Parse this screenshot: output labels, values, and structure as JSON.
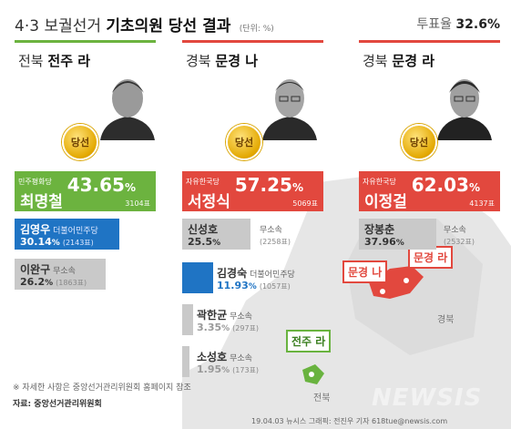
{
  "header": {
    "prefix": "4·3 보궐선거",
    "title": "기초의원 당선 결과",
    "unit": "(단위: %)",
    "turnout_label": "투표율",
    "turnout_value": "32.6%"
  },
  "badge_text": "당선",
  "colors": {
    "democratic_green": "#6cb33f",
    "liberty_red": "#e2483e",
    "democratic_blue": "#1f74c4",
    "gray": "#c9c9c9",
    "map_land": "#e6e6e6",
    "map_region": "#e2483e",
    "map_jeonju": "#69b33f"
  },
  "districts": [
    {
      "region": "전북",
      "district": "전주 라",
      "winner": {
        "party": "민주평화당",
        "name": "최명철",
        "pct": "43.65",
        "votes": "3104표"
      },
      "others": [
        {
          "name": "김영우",
          "party": "더불어민주당",
          "pct": "30.14",
          "votes": "(2143표)"
        },
        {
          "name": "이완구",
          "party": "무소속",
          "pct": "26.2",
          "votes": "(1863표)"
        }
      ]
    },
    {
      "region": "경북",
      "district": "문경 나",
      "winner": {
        "party": "자유한국당",
        "name": "서정식",
        "pct": "57.25",
        "votes": "5069표"
      },
      "others": [
        {
          "name": "신성호",
          "party": "무소속",
          "pct": "25.5",
          "votes": "(2258표)"
        },
        {
          "name": "김경숙",
          "party": "더불어민주당",
          "pct": "11.93",
          "votes": "(1057표)"
        },
        {
          "name": "곽한균",
          "party": "무소속",
          "pct": "3.35",
          "votes": "(297표)"
        },
        {
          "name": "소성호",
          "party": "무소속",
          "pct": "1.95",
          "votes": "(173표)"
        }
      ]
    },
    {
      "region": "경북",
      "district": "문경 라",
      "winner": {
        "party": "자유한국당",
        "name": "이정걸",
        "pct": "62.03",
        "votes": "4137표"
      },
      "others": [
        {
          "name": "장봉춘",
          "party": "무소속",
          "pct": "37.96",
          "votes": "(2532표)"
        }
      ]
    }
  ],
  "map": {
    "label_gyeongbuk": "경북",
    "label_jeonbuk": "전북",
    "callout_mungyeong_na": "문경 나",
    "callout_mungyeong_ra": "문경 라",
    "callout_jeonju_ra": "전주 라"
  },
  "footer": {
    "note": "※ 자세한 사항은 중앙선거관리위원회 홈페이지 참조",
    "source": "자료: 중앙선거관리위원회",
    "credit": "19.04.03 뉴시스 그래픽: 전진우 기자 618tue@newsis.com",
    "watermark": "NEWSIS"
  }
}
